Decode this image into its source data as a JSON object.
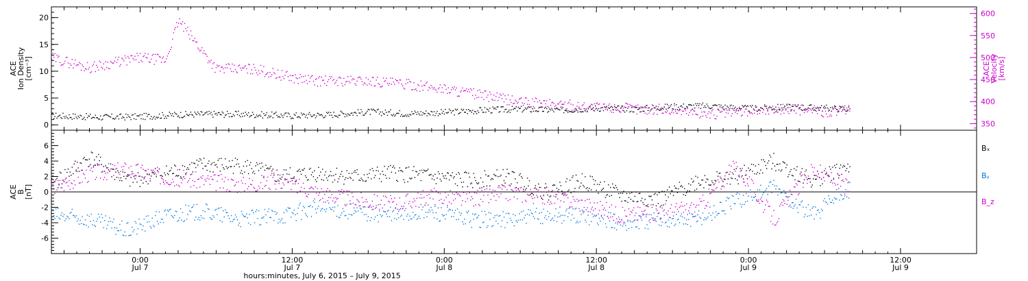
{
  "figure": {
    "xlabel": "hours:minutes,  July  6, 2015 – July  9, 2015"
  },
  "chart_data": [
    {
      "type": "scatter",
      "x_ticks": [
        {
          "time": "Jul 7 00:00",
          "label": "0:00",
          "date": "Jul 7"
        },
        {
          "time": "Jul 7 12:00",
          "label": "12:00",
          "date": "Jul 7"
        },
        {
          "time": "Jul 8 00:00",
          "label": "0:00",
          "date": "Jul 8"
        },
        {
          "time": "Jul 8 12:00",
          "label": "12:00",
          "date": "Jul 8"
        },
        {
          "time": "Jul 9 00:00",
          "label": "0:00",
          "date": "Jul 9"
        },
        {
          "time": "Jul 9 12:00",
          "label": "12:00",
          "date": "Jul 9"
        }
      ],
      "xlim": [
        "Jul 6 17:00",
        "Jul 9 18:00"
      ],
      "left_axis": {
        "label": [
          "ACE",
          "Ion Density",
          "[cm⁻³]"
        ],
        "ylim": [
          -1,
          22
        ],
        "ticks": [
          0,
          5,
          10,
          15,
          20
        ],
        "color": "#000000"
      },
      "right_axis": {
        "label": [
          "ACE",
          "Velocity",
          "[km/s]"
        ],
        "ylim": [
          335,
          615
        ],
        "ticks": [
          350,
          400,
          450,
          500,
          550,
          600
        ],
        "color": "#cc00cc"
      },
      "series": [
        {
          "axis": "left",
          "color": "#000000",
          "x": [
            "Jul 6 17:00",
            "Jul 6 21:00",
            "Jul 7 00:00",
            "Jul 7 03:00",
            "Jul 7 06:00",
            "Jul 7 09:00",
            "Jul 7 12:00",
            "Jul 7 15:00",
            "Jul 7 18:00",
            "Jul 7 21:00",
            "Jul 8 00:00",
            "Jul 8 03:00",
            "Jul 8 06:00",
            "Jul 8 09:00",
            "Jul 8 12:00",
            "Jul 8 15:00",
            "Jul 8 18:00",
            "Jul 8 21:00",
            "Jul 9 00:00",
            "Jul 9 03:00",
            "Jul 9 06:00",
            "Jul 9 08:00"
          ],
          "y": [
            1.8,
            1.5,
            1.6,
            2.0,
            2.1,
            2.0,
            1.8,
            2.0,
            2.5,
            2.2,
            2.4,
            2.8,
            3.0,
            2.8,
            3.2,
            3.0,
            3.5,
            3.6,
            3.1,
            3.4,
            3.2,
            3.0
          ]
        },
        {
          "axis": "right",
          "color": "#cc00cc",
          "x": [
            "Jul 6 17:00",
            "Jul 6 20:00",
            "Jul 6 22:00",
            "Jul 7 00:00",
            "Jul 7 02:00",
            "Jul 7 03:00",
            "Jul 7 06:00",
            "Jul 7 09:00",
            "Jul 7 12:00",
            "Jul 7 14:00",
            "Jul 7 18:00",
            "Jul 7 21:00",
            "Jul 8 00:00",
            "Jul 8 03:00",
            "Jul 8 06:00",
            "Jul 8 09:00",
            "Jul 8 12:00",
            "Jul 8 15:00",
            "Jul 8 18:00",
            "Jul 8 21:00",
            "Jul 9 00:00",
            "Jul 9 03:00",
            "Jul 9 06:00",
            "Jul 9 08:00"
          ],
          "y": [
            500,
            478,
            490,
            500,
            495,
            585,
            475,
            475,
            455,
            448,
            448,
            440,
            430,
            415,
            400,
            395,
            388,
            385,
            382,
            372,
            380,
            385,
            378,
            380
          ]
        }
      ]
    },
    {
      "type": "scatter",
      "x_ticks": [
        {
          "time": "Jul 7 00:00",
          "label": "0:00",
          "date": "Jul 7"
        },
        {
          "time": "Jul 7 12:00",
          "label": "12:00",
          "date": "Jul 7"
        },
        {
          "time": "Jul 8 00:00",
          "label": "0:00",
          "date": "Jul 8"
        },
        {
          "time": "Jul 8 12:00",
          "label": "12:00",
          "date": "Jul 8"
        },
        {
          "time": "Jul 9 00:00",
          "label": "0:00",
          "date": "Jul 9"
        },
        {
          "time": "Jul 9 12:00",
          "label": "12:00",
          "date": "Jul 9"
        }
      ],
      "xlim": [
        "Jul 6 17:00",
        "Jul 9 18:00"
      ],
      "left_axis": {
        "label": [
          "ACE",
          "B",
          "[nT]"
        ],
        "ylim": [
          -8,
          8
        ],
        "ticks": [
          -6,
          -4,
          -2,
          0,
          2,
          4,
          6
        ],
        "color": "#000000"
      },
      "zero_line": true,
      "legend_placement": "right",
      "series": [
        {
          "name": "Bₓ",
          "color": "#000000",
          "x": [
            "Jul 6 17:00",
            "Jul 6 20:00",
            "Jul 6 23:00",
            "Jul 7 02:00",
            "Jul 7 05:00",
            "Jul 7 08:00",
            "Jul 7 11:00",
            "Jul 7 14:00",
            "Jul 7 17:00",
            "Jul 7 20:00",
            "Jul 7 23:00",
            "Jul 8 02:00",
            "Jul 8 05:00",
            "Jul 8 08:00",
            "Jul 8 11:00",
            "Jul 8 14:00",
            "Jul 8 17:00",
            "Jul 8 20:00",
            "Jul 8 23:00",
            "Jul 9 02:00",
            "Jul 9 05:00",
            "Jul 9 08:00"
          ],
          "y": [
            1.0,
            4.5,
            1.5,
            2.5,
            3.5,
            3.5,
            2.0,
            2.5,
            2.0,
            2.5,
            2.0,
            1.5,
            2.0,
            0.0,
            1.5,
            -0.5,
            -1.0,
            1.5,
            2.0,
            4.0,
            1.5,
            3.5
          ]
        },
        {
          "name": "Bᵧ",
          "color": "#0077dd",
          "x": [
            "Jul 6 17:00",
            "Jul 6 20:00",
            "Jul 6 23:00",
            "Jul 7 02:00",
            "Jul 7 05:00",
            "Jul 7 08:00",
            "Jul 7 11:00",
            "Jul 7 14:00",
            "Jul 7 17:00",
            "Jul 7 20:00",
            "Jul 7 23:00",
            "Jul 8 02:00",
            "Jul 8 05:00",
            "Jul 8 08:00",
            "Jul 8 11:00",
            "Jul 8 14:00",
            "Jul 8 17:00",
            "Jul 8 20:00",
            "Jul 8 23:00",
            "Jul 9 02:00",
            "Jul 9 05:00",
            "Jul 9 08:00"
          ],
          "y": [
            -3.0,
            -3.5,
            -5.0,
            -3.0,
            -2.5,
            -3.5,
            -3.0,
            -2.0,
            -2.5,
            -3.0,
            -2.5,
            -3.5,
            -3.5,
            -3.0,
            -3.0,
            -4.0,
            -3.5,
            -3.5,
            -1.0,
            0.5,
            -3.0,
            0.5
          ]
        },
        {
          "name": "B_z",
          "color": "#cc00cc",
          "x": [
            "Jul 6 17:00",
            "Jul 6 20:00",
            "Jul 6 23:00",
            "Jul 7 02:00",
            "Jul 7 05:00",
            "Jul 7 08:00",
            "Jul 7 11:00",
            "Jul 7 14:00",
            "Jul 7 17:00",
            "Jul 7 20:00",
            "Jul 7 23:00",
            "Jul 8 02:00",
            "Jul 8 05:00",
            "Jul 8 08:00",
            "Jul 8 11:00",
            "Jul 8 14:00",
            "Jul 8 17:00",
            "Jul 8 20:00",
            "Jul 8 23:00",
            "Jul 9 02:00",
            "Jul 9 05:00",
            "Jul 9 08:00"
          ],
          "y": [
            0.5,
            2.5,
            3.0,
            2.0,
            1.5,
            1.0,
            1.5,
            0.0,
            -1.0,
            -1.5,
            -0.5,
            -1.0,
            0.0,
            -0.5,
            -1.5,
            -3.0,
            -2.5,
            -2.0,
            3.5,
            -3.5,
            3.0,
            0.5
          ]
        }
      ]
    }
  ]
}
